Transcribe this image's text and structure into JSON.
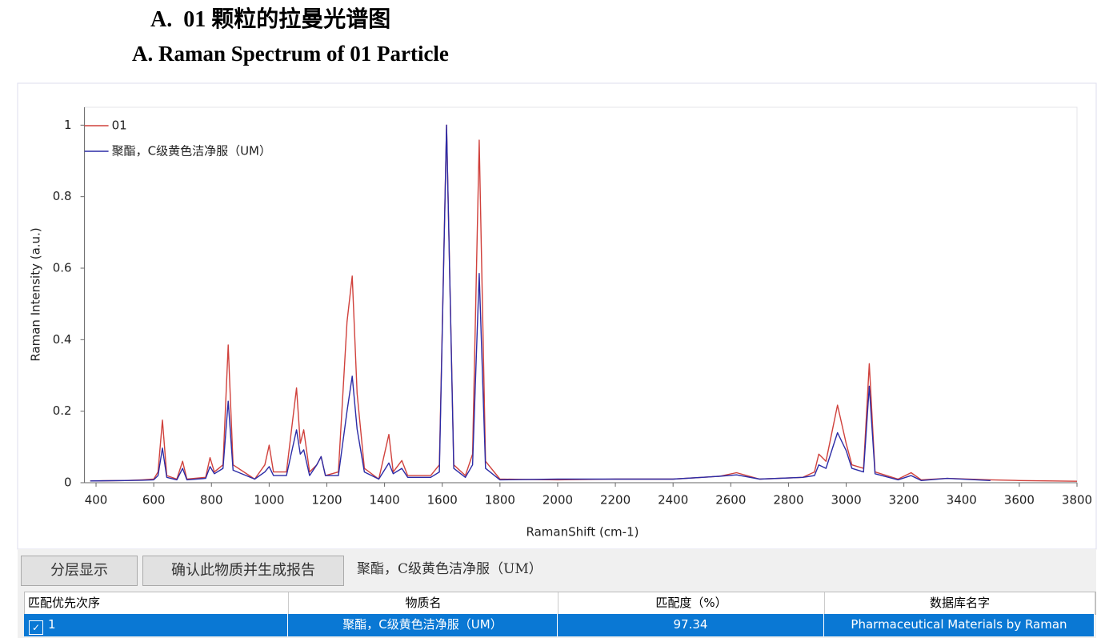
{
  "header": {
    "title": "A.  01 颗粒的拉曼光谱图",
    "subtitle": "A. Raman Spectrum of 01 Particle"
  },
  "chart_data": {
    "type": "line",
    "xlabel": "RamanShift (cm-1)",
    "ylabel": "Raman Intensity (a.u.)",
    "x": [
      380,
      500,
      560,
      600,
      615,
      630,
      645,
      680,
      700,
      715,
      780,
      795,
      810,
      840,
      858,
      875,
      950,
      985,
      1000,
      1015,
      1060,
      1095,
      1108,
      1120,
      1140,
      1165,
      1180,
      1195,
      1240,
      1270,
      1288,
      1305,
      1330,
      1380,
      1415,
      1430,
      1460,
      1480,
      1560,
      1590,
      1615,
      1640,
      1680,
      1705,
      1728,
      1750,
      1800,
      2000,
      2200,
      2400,
      2560,
      2620,
      2700,
      2850,
      2890,
      2905,
      2930,
      2970,
      3000,
      3020,
      3060,
      3080,
      3100,
      3180,
      3225,
      3260,
      3350,
      3500,
      3600,
      3800
    ],
    "series": [
      {
        "name": "01",
        "color": "#d0413c",
        "values": [
          0.005,
          0.006,
          0.008,
          0.01,
          0.03,
          0.175,
          0.02,
          0.01,
          0.06,
          0.01,
          0.015,
          0.07,
          0.03,
          0.05,
          0.385,
          0.05,
          0.01,
          0.05,
          0.105,
          0.03,
          0.03,
          0.265,
          0.11,
          0.148,
          0.03,
          0.05,
          0.073,
          0.02,
          0.03,
          0.45,
          0.578,
          0.25,
          0.04,
          0.01,
          0.135,
          0.03,
          0.062,
          0.02,
          0.02,
          0.05,
          1.0,
          0.05,
          0.02,
          0.08,
          0.958,
          0.06,
          0.01,
          0.008,
          0.01,
          0.01,
          0.018,
          0.028,
          0.01,
          0.015,
          0.03,
          0.08,
          0.06,
          0.217,
          0.11,
          0.05,
          0.04,
          0.333,
          0.03,
          0.01,
          0.028,
          0.008,
          0.012,
          0.008,
          0.006,
          0.004
        ]
      },
      {
        "name": "聚酯，C级黄色洁净服（UM）",
        "color": "#2b2ba6",
        "values": [
          0.005,
          0.006,
          0.007,
          0.008,
          0.02,
          0.097,
          0.015,
          0.008,
          0.04,
          0.008,
          0.012,
          0.045,
          0.025,
          0.04,
          0.228,
          0.035,
          0.01,
          0.03,
          0.045,
          0.02,
          0.02,
          0.148,
          0.08,
          0.092,
          0.02,
          0.05,
          0.073,
          0.02,
          0.02,
          0.2,
          0.298,
          0.15,
          0.03,
          0.01,
          0.055,
          0.025,
          0.04,
          0.015,
          0.015,
          0.03,
          1.0,
          0.04,
          0.015,
          0.05,
          0.585,
          0.04,
          0.008,
          0.01,
          0.01,
          0.01,
          0.018,
          0.022,
          0.01,
          0.015,
          0.02,
          0.05,
          0.04,
          0.14,
          0.09,
          0.04,
          0.03,
          0.27,
          0.025,
          0.008,
          0.02,
          0.006,
          0.012,
          0.006,
          null,
          null
        ]
      }
    ],
    "xlim": [
      360,
      3800
    ],
    "ylim": [
      0,
      1.05
    ],
    "xticks": [
      400,
      600,
      800,
      1000,
      1200,
      1400,
      1600,
      1800,
      2000,
      2200,
      2400,
      2600,
      2800,
      3000,
      3200,
      3400,
      3600,
      3800
    ],
    "yticks": [
      0,
      0.2,
      0.4,
      0.6,
      0.8,
      1
    ],
    "legend": "upper left"
  },
  "toolbar": {
    "buttons": [
      "分层显示",
      "确认此物质并生成报告"
    ],
    "selected": "聚酯，C级黄色洁净服（UM）"
  },
  "table": {
    "columns": [
      "匹配优先次序",
      "物质名",
      "匹配度（%）",
      "数据库名字"
    ],
    "rows": [
      [
        "1",
        "聚酯，C级黄色洁净服（UM）",
        "97.34",
        "Pharmaceutical Materials by Raman"
      ]
    ]
  }
}
